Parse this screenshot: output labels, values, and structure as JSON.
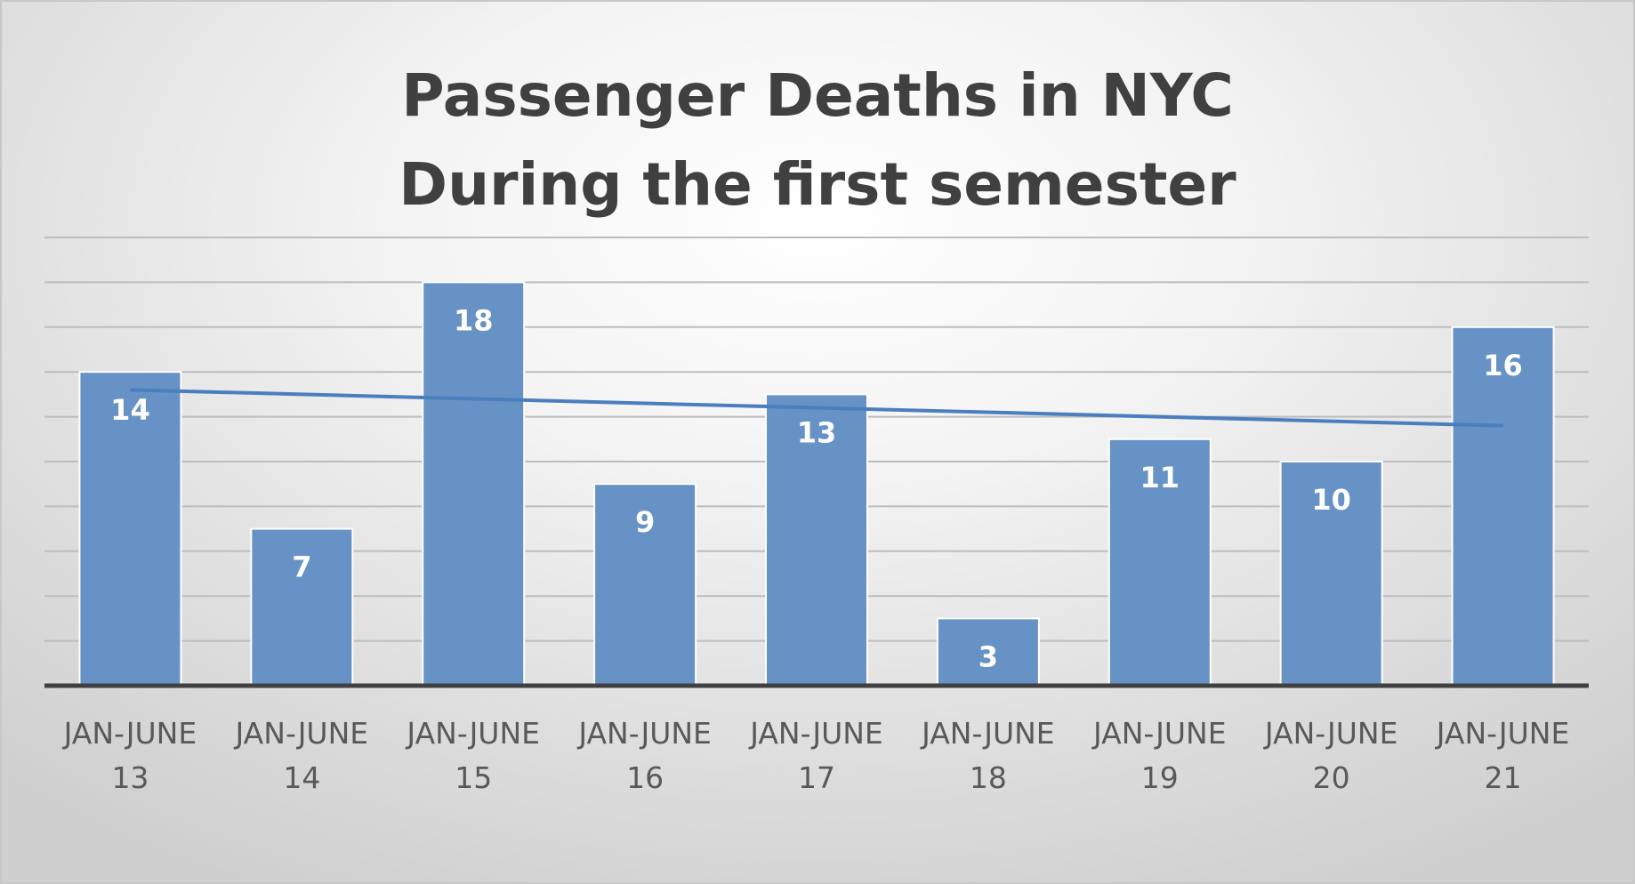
{
  "chart_data": {
    "type": "bar",
    "title_lines": [
      "Passenger Deaths in NYC",
      "During the first semester"
    ],
    "categories": [
      [
        "JAN-JUNE",
        "13"
      ],
      [
        "JAN-JUNE",
        "14"
      ],
      [
        "JAN-JUNE",
        "15"
      ],
      [
        "JAN-JUNE",
        "16"
      ],
      [
        "JAN-JUNE",
        "17"
      ],
      [
        "JAN-JUNE",
        "18"
      ],
      [
        "JAN-JUNE",
        "19"
      ],
      [
        "JAN-JUNE",
        "20"
      ],
      [
        "JAN-JUNE",
        "21"
      ]
    ],
    "values": [
      14,
      7,
      18,
      9,
      13,
      3,
      11,
      10,
      16
    ],
    "data_labels": [
      "14",
      "7",
      "18",
      "9",
      "13",
      "3",
      "11",
      "10",
      "16"
    ],
    "trendline": {
      "type": "linear",
      "start": 13.2,
      "end": 11.6
    },
    "ylim": [
      0,
      20
    ],
    "grid_step": 2,
    "grid": true,
    "legend": "none",
    "xlabel": "",
    "ylabel": "",
    "colors": {
      "bar": "#6792c6",
      "bar_edge": "#ffffff",
      "trend": "#4a7ebf",
      "grid": "#bdbdbd",
      "axis": "#404040"
    }
  }
}
